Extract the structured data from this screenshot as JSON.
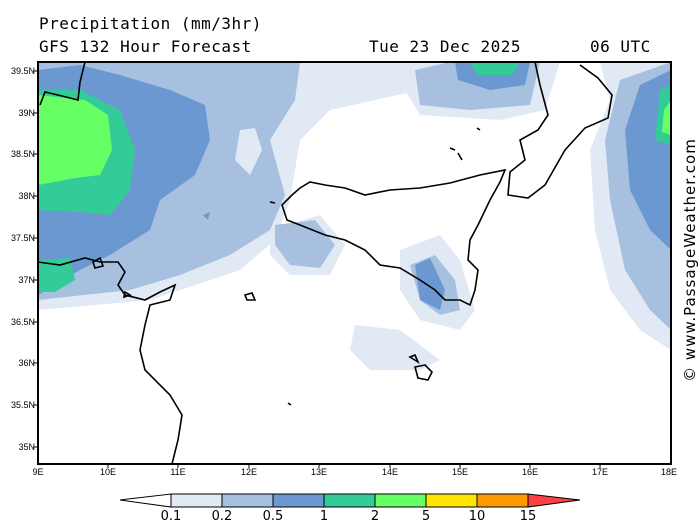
{
  "header": {
    "title": "Precipitation (mm/3hr)",
    "model": "GFS 132 Hour Forecast",
    "date": "Tue 23 Dec 2025",
    "time": "06 UTC"
  },
  "watermark": "© www.PassageWeather.com",
  "axes": {
    "lat": [
      "39.5N",
      "39N",
      "38.5N",
      "38N",
      "37.5N",
      "37N",
      "36.5N",
      "36N",
      "35.5N",
      "35N"
    ],
    "lon": [
      "9E",
      "10E",
      "11E",
      "12E",
      "13E",
      "14E",
      "15E",
      "16E",
      "17E",
      "18E"
    ]
  },
  "legend": {
    "labels": [
      "0.1",
      "0.2",
      "0.5",
      "1",
      "2",
      "5",
      "10",
      "15"
    ],
    "colors": [
      "#e1e9f5",
      "#a8c0df",
      "#6b98d0",
      "#33cc99",
      "#66ff66",
      "#ffe600",
      "#ff9900",
      "#ff4040"
    ]
  }
}
